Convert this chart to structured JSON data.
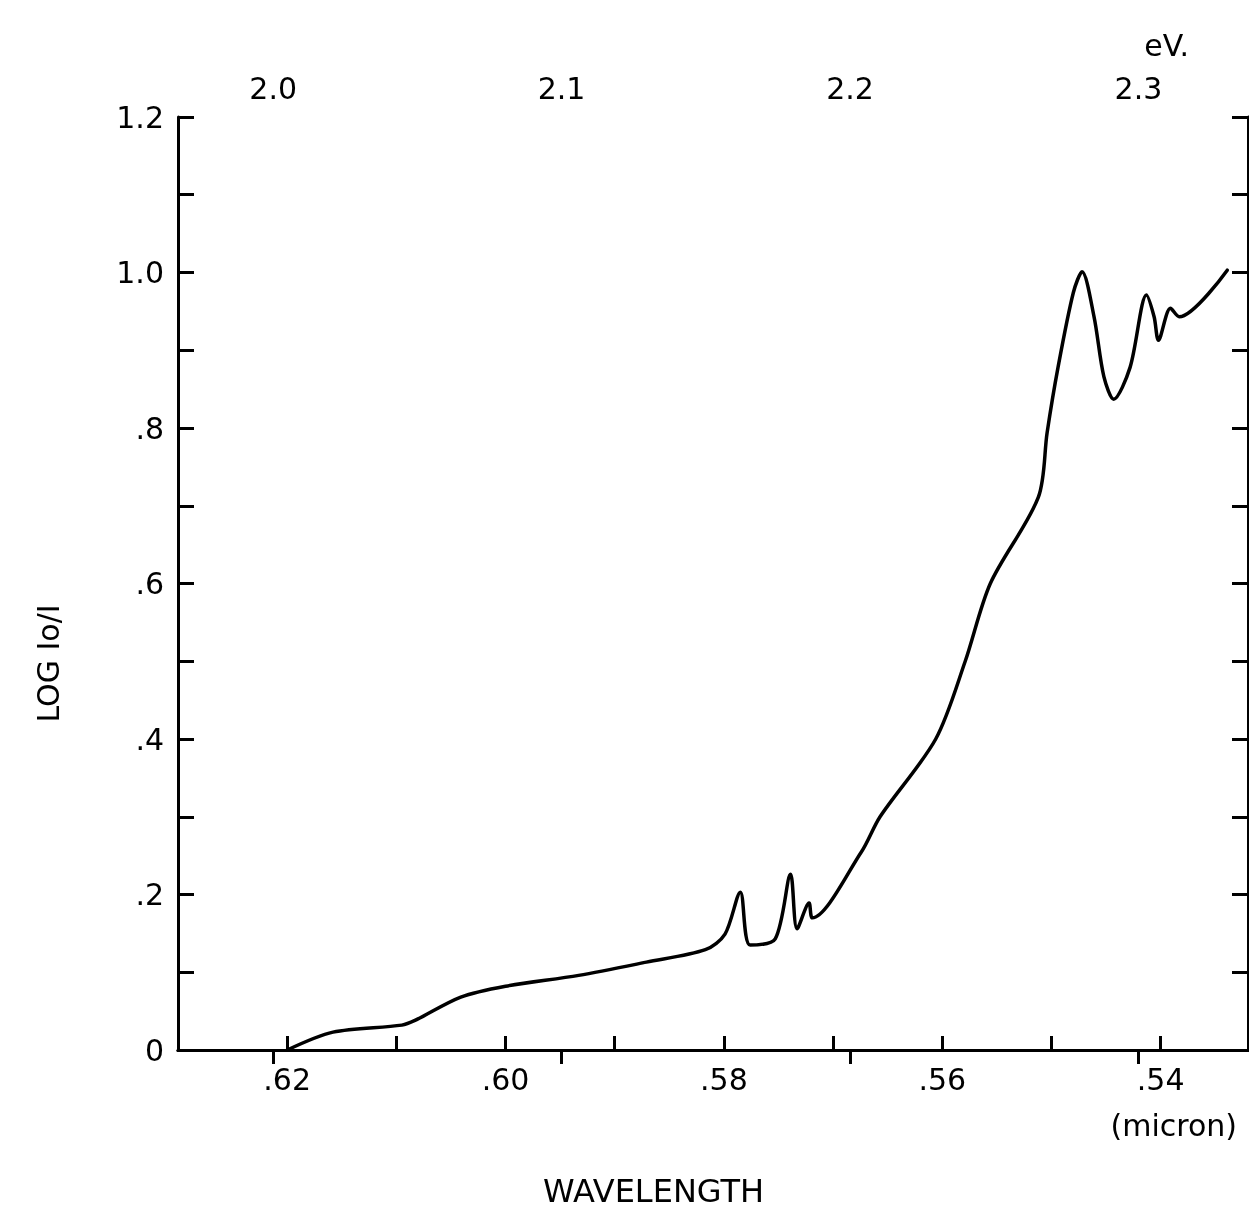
{
  "chart_data": {
    "type": "line",
    "xlabel": "WAVELENGTH",
    "ylabel": "LOG Io/I",
    "x2label": "eV.",
    "annotations": [
      "(micron)"
    ],
    "xlim": [
      0.63,
      0.532
    ],
    "xticks": [
      {
        "value": 0.62,
        "label": ".62"
      },
      {
        "value": 0.61,
        "label": null
      },
      {
        "value": 0.6,
        "label": ".60"
      },
      {
        "value": 0.59,
        "label": null
      },
      {
        "value": 0.58,
        "label": ".58"
      },
      {
        "value": 0.57,
        "label": null
      },
      {
        "value": 0.56,
        "label": ".56"
      },
      {
        "value": 0.55,
        "label": null
      },
      {
        "value": 0.54,
        "label": ".54"
      }
    ],
    "x2lim": [
      1.967,
      2.338
    ],
    "x2ticks": [
      {
        "value": 2.0,
        "label": "2.0"
      },
      {
        "value": 2.1,
        "label": "2.1"
      },
      {
        "value": 2.2,
        "label": "2.2"
      },
      {
        "value": 2.3,
        "label": "2.3"
      }
    ],
    "ylim": [
      0,
      1.2
    ],
    "yticks": [
      0,
      {
        "value": 0.1,
        "label": null
      },
      {
        "value": 0.2,
        "label": ".2"
      },
      {
        "value": 0.3,
        "label": null
      },
      {
        "value": 0.4,
        "label": ".4"
      },
      {
        "value": 0.5,
        "label": null
      },
      {
        "value": 0.6,
        "label": ".6"
      },
      {
        "value": 0.7,
        "label": null
      },
      {
        "value": 0.8,
        "label": ".8"
      },
      {
        "value": 0.9,
        "label": null
      },
      {
        "value": 1.0,
        "label": "1.0"
      },
      {
        "value": 1.1,
        "label": null
      },
      {
        "value": 1.2,
        "label": "1.2"
      }
    ],
    "series": [
      {
        "color": "#000000",
        "x": [
          0.62,
          0.6158,
          0.6095,
          0.6083,
          0.6041,
          0.6,
          0.5933,
          0.5871,
          0.5817,
          0.5799,
          0.5785,
          0.5776,
          0.5753,
          0.5739,
          0.5733,
          0.5722,
          0.5719,
          0.5674,
          0.5657,
          0.5606,
          0.5579,
          0.5556,
          0.5512,
          0.5504,
          0.5494,
          0.548,
          0.5472,
          0.5461,
          0.5452,
          0.5443,
          0.5428,
          0.5413,
          0.5406,
          0.5402,
          0.5391,
          0.5383,
          0.5339
        ],
        "values": [
          0.0,
          0.023,
          0.032,
          0.038,
          0.068,
          0.082,
          0.096,
          0.113,
          0.129,
          0.149,
          0.203,
          0.135,
          0.143,
          0.226,
          0.156,
          0.189,
          0.17,
          0.255,
          0.3,
          0.4,
          0.5,
          0.6,
          0.711,
          0.794,
          0.878,
          0.974,
          1.001,
          0.943,
          0.866,
          0.837,
          0.878,
          0.971,
          0.943,
          0.913,
          0.954,
          0.943,
          1.003
        ]
      }
    ]
  }
}
